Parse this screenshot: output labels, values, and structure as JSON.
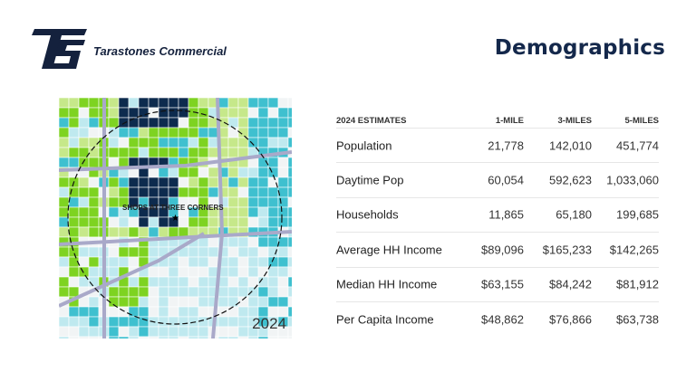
{
  "header": {
    "brand_name": "Tarastones Commercial",
    "logo_text": "TS",
    "page_title": "Demographics"
  },
  "map": {
    "site_label": "SHOPS AT THREE CORNERS",
    "year": "2024"
  },
  "table": {
    "headers": [
      "2024 ESTIMATES",
      "1-MILE",
      "3-MILES",
      "5-MILES"
    ],
    "rows": [
      {
        "label": "Population",
        "values": [
          "21,778",
          "142,010",
          "451,774"
        ]
      },
      {
        "label": "Daytime Pop",
        "values": [
          "60,054",
          "592,623",
          "1,033,060"
        ]
      },
      {
        "label": "Households",
        "values": [
          "11,865",
          "65,180",
          "199,685"
        ]
      },
      {
        "label": "Average HH Income",
        "values": [
          "$89,096",
          "$165,233",
          "$142,265"
        ]
      },
      {
        "label": "Median HH Income",
        "values": [
          "$63,155",
          "$84,242",
          "$81,912"
        ]
      },
      {
        "label": "Per Capita Income",
        "values": [
          "$48,862",
          "$76,866",
          "$63,738"
        ]
      }
    ]
  }
}
